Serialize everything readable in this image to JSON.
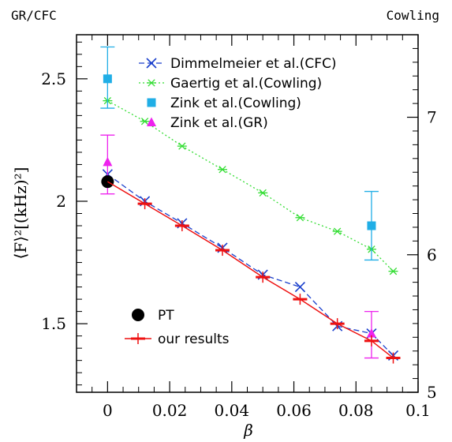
{
  "chart_data": {
    "type": "scatter",
    "corner_left": "GR/CFC",
    "corner_right": "Cowling",
    "xlabel": "β",
    "ylabel": "⟨F⟩²[(kHz)²]",
    "xlim": [
      -0.01,
      0.1
    ],
    "ylim": [
      1.22,
      2.68
    ],
    "y2lim": [
      5.0,
      7.6
    ],
    "x_ticks": [
      0,
      0.02,
      0.04,
      0.06,
      0.08,
      0.1
    ],
    "x_tick_labels": [
      "0",
      "0.02",
      "0.04",
      "0.06",
      "0.08",
      "0.1"
    ],
    "y_ticks": [
      1.5,
      2.0,
      2.5
    ],
    "y_tick_labels": [
      "1.5",
      "2",
      "2.5"
    ],
    "y2_ticks": [
      5,
      6,
      7
    ],
    "y2_tick_labels": [
      "5",
      "6",
      "7"
    ],
    "legend_top": {
      "placement": "top-right"
    },
    "legend_bottom": {
      "placement": "bottom-left"
    },
    "series": [
      {
        "name": "Dimmelmeier et al.(CFC)",
        "color": "#1a3fcc",
        "marker": "x",
        "line": "dashed",
        "axis": "left",
        "x": [
          0,
          0.012,
          0.024,
          0.037,
          0.05,
          0.062,
          0.074,
          0.085,
          0.092
        ],
        "y": [
          2.11,
          2.0,
          1.91,
          1.81,
          1.7,
          1.65,
          1.49,
          1.46,
          1.37
        ]
      },
      {
        "name": "Gaertig et al.(Cowling)",
        "color": "#33dd33",
        "marker": "asterisk",
        "line": "dotted",
        "axis": "right",
        "x": [
          0,
          0.012,
          0.024,
          0.037,
          0.05,
          0.062,
          0.074,
          0.085,
          0.092
        ],
        "y": [
          7.12,
          6.97,
          6.79,
          6.62,
          6.45,
          6.27,
          6.17,
          6.04,
          5.88
        ]
      },
      {
        "name": "Zink et al.(Cowling)",
        "color": "#20aee6",
        "marker": "square",
        "line": "none",
        "axis": "left",
        "x": [
          0,
          0.085
        ],
        "y": [
          2.5,
          1.9
        ],
        "yerr_low": [
          2.38,
          1.76
        ],
        "yerr_high": [
          2.63,
          2.04
        ]
      },
      {
        "name": "Zink et al.(GR)",
        "color": "#ee22ee",
        "marker": "triangle",
        "line": "none",
        "axis": "left",
        "x": [
          0,
          0.085
        ],
        "y": [
          2.16,
          1.46
        ],
        "yerr_low": [
          2.03,
          1.36
        ],
        "yerr_high": [
          2.27,
          1.55
        ]
      },
      {
        "name": "PT",
        "color": "#000000",
        "marker": "circle",
        "line": "none",
        "axis": "left",
        "x": [
          0
        ],
        "y": [
          2.08
        ]
      },
      {
        "name": "our results",
        "color": "#ee1111",
        "marker": "plus",
        "line": "solid",
        "axis": "left",
        "x": [
          0.012,
          0.024,
          0.037,
          0.05,
          0.062,
          0.074,
          0.085,
          0.092
        ],
        "y": [
          1.99,
          1.9,
          1.8,
          1.69,
          1.6,
          1.5,
          1.43,
          1.36
        ],
        "line_x": [
          0,
          0.012,
          0.024,
          0.037,
          0.05,
          0.062,
          0.074,
          0.085,
          0.092
        ],
        "line_y": [
          2.08,
          1.99,
          1.9,
          1.8,
          1.69,
          1.6,
          1.5,
          1.43,
          1.36
        ]
      }
    ]
  }
}
